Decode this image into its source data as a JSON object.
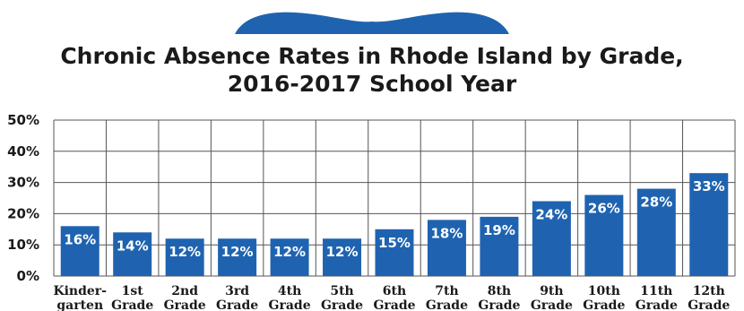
{
  "chart_data": {
    "type": "bar",
    "title": "Chronic Absence Rates in Rhode Island by Grade,",
    "subtitle": "2016-2017 School Year",
    "categories": [
      [
        "Kinder-",
        "garten"
      ],
      [
        "1st",
        "Grade"
      ],
      [
        "2nd",
        "Grade"
      ],
      [
        "3rd",
        "Grade"
      ],
      [
        "4th",
        "Grade"
      ],
      [
        "5th",
        "Grade"
      ],
      [
        "6th",
        "Grade"
      ],
      [
        "7th",
        "Grade"
      ],
      [
        "8th",
        "Grade"
      ],
      [
        "9th",
        "Grade"
      ],
      [
        "10th",
        "Grade"
      ],
      [
        "11th",
        "Grade"
      ],
      [
        "12th",
        "Grade"
      ]
    ],
    "values": [
      16,
      14,
      12,
      12,
      12,
      12,
      15,
      18,
      19,
      24,
      26,
      28,
      33
    ],
    "data_labels": [
      "16%",
      "14%",
      "12%",
      "12%",
      "12%",
      "12%",
      "15%",
      "18%",
      "19%",
      "24%",
      "26%",
      "28%",
      "33%"
    ],
    "ylim": [
      0,
      50
    ],
    "y_ticks": [
      "0%",
      "10%",
      "20%",
      "30%",
      "40%",
      "50%"
    ],
    "grid": true,
    "colors": {
      "bar": "#1f63b0",
      "grid": "#555555",
      "text": "#1a1a1a",
      "label": "#ffffff",
      "logo": "#1f63b0"
    }
  },
  "decoration": {
    "logo_icon": "open-book-icon"
  }
}
